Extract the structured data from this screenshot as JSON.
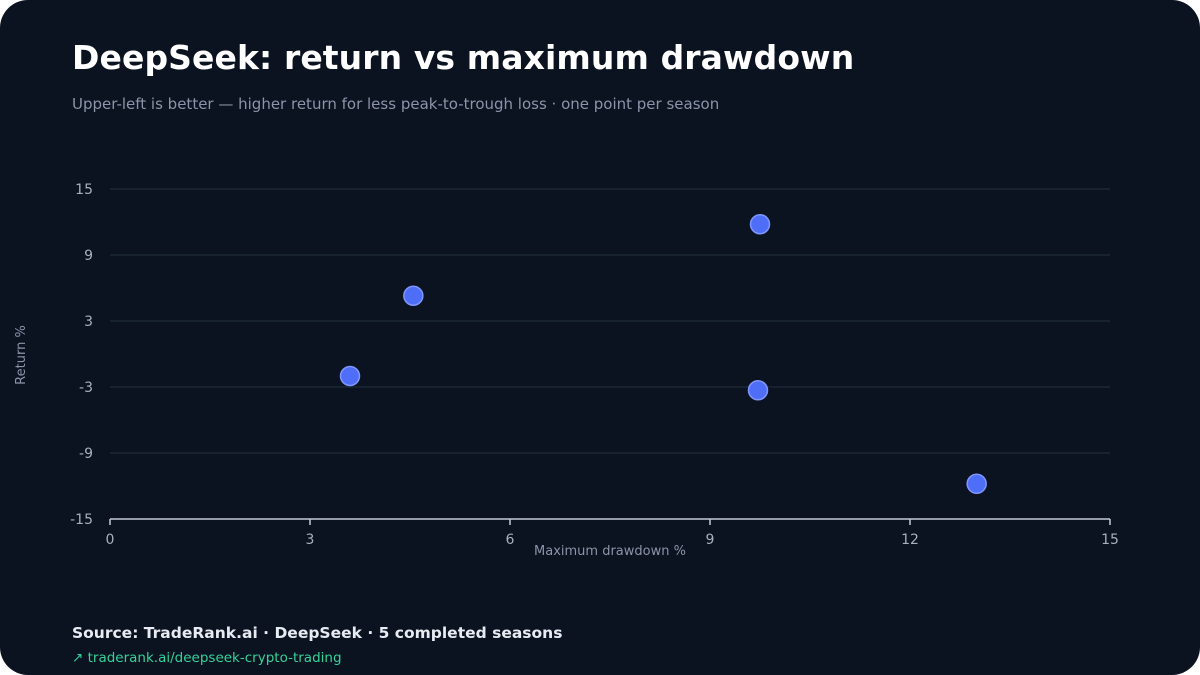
{
  "header": {
    "title": "DeepSeek: return vs maximum drawdown",
    "subtitle": "Upper-left is better — higher return for less peak-to-trough loss · one point per season"
  },
  "footer": {
    "source": "Source: TradeRank.ai · DeepSeek · 5 completed seasons",
    "link_arrow": "↗",
    "link_text": "traderank.ai/deepseek-crypto-trading"
  },
  "colors": {
    "background": "#0b1220",
    "point": "#4f6ef7",
    "point_stroke": "#7f96ff",
    "grid": "#1f2d3a",
    "axis": "#c3cad6",
    "link": "#34d399"
  },
  "chart_data": {
    "type": "scatter",
    "xlabel": "Maximum drawdown %",
    "ylabel": "Return %",
    "xlim": [
      0,
      15
    ],
    "ylim": [
      -15,
      15
    ],
    "x_ticks": [
      0,
      3,
      6,
      9,
      12,
      15
    ],
    "y_ticks": [
      15,
      9,
      3,
      -3,
      -9,
      -15
    ],
    "grid": "horizontal",
    "series": [
      {
        "points": [
          {
            "x": 3.6,
            "y": -2.0
          },
          {
            "x": 4.55,
            "y": 5.3
          },
          {
            "x": 9.75,
            "y": 11.8
          },
          {
            "x": 9.72,
            "y": -3.3
          },
          {
            "x": 13.0,
            "y": -11.8
          }
        ]
      }
    ]
  }
}
